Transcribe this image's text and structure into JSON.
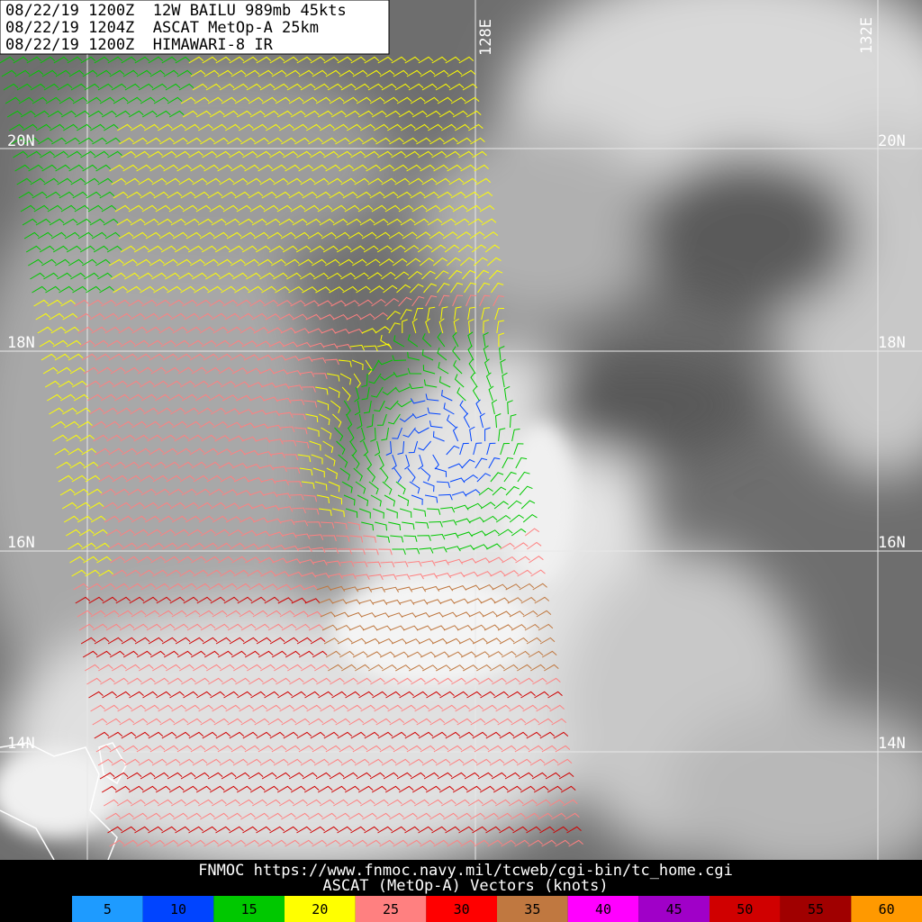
{
  "header": {
    "lines": [
      "08/22/19 1200Z  12W BAILU 989mb 45kts",
      "08/22/19 1204Z  ASCAT MetOp-A 25km",
      "08/22/19 1200Z  HIMAWARI-8 IR"
    ]
  },
  "map": {
    "lat_labels": [
      "20N",
      "18N",
      "16N",
      "14N"
    ],
    "lon_labels": [
      "128E",
      "132E"
    ]
  },
  "footer": {
    "source": "FNMOC https://www.fnmoc.navy.mil/tcweb/cgi-bin/tc_home.cgi",
    "caption": "ASCAT (MetOp-A) Vectors (knots)"
  },
  "legend": {
    "items": [
      {
        "label": 5,
        "color": "#1e9bff"
      },
      {
        "label": 10,
        "color": "#0044ff"
      },
      {
        "label": 15,
        "color": "#00c800"
      },
      {
        "label": 20,
        "color": "#ffff00"
      },
      {
        "label": 25,
        "color": "#ff8080"
      },
      {
        "label": 30,
        "color": "#ff0000"
      },
      {
        "label": 35,
        "color": "#c07840"
      },
      {
        "label": 40,
        "color": "#ff00ff"
      },
      {
        "label": 45,
        "color": "#a000c8"
      },
      {
        "label": 50,
        "color": "#d00000"
      },
      {
        "label": 55,
        "color": "#a00000"
      },
      {
        "label": 60,
        "color": "#ff9900"
      }
    ]
  }
}
